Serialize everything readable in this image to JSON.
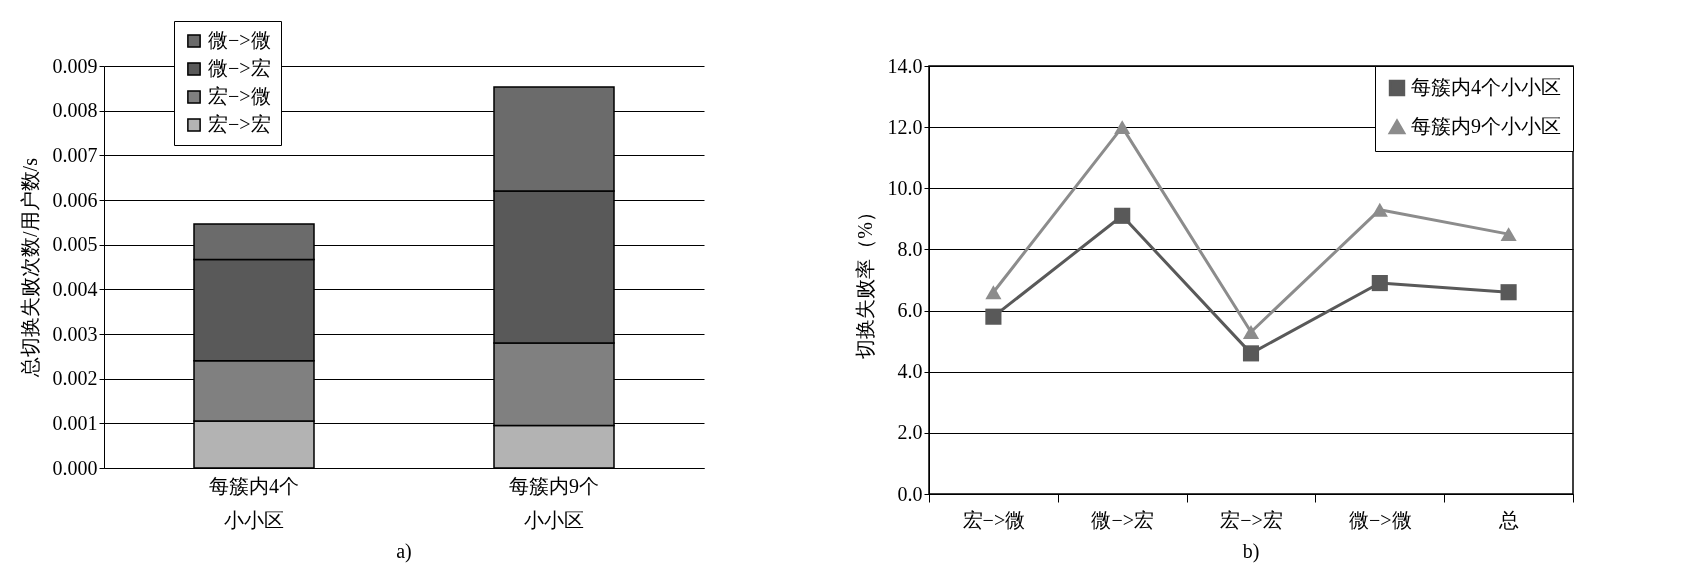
{
  "chart_data": [
    {
      "type": "bar",
      "stacked": true,
      "ylabel": "总切换失败次数/用户数/s",
      "categories": [
        "每簇内4个小小区",
        "每簇内9个小小区"
      ],
      "series": [
        {
          "name": "宏−>宏",
          "color": "#b3b3b3",
          "values": [
            0.00105,
            0.00095
          ]
        },
        {
          "name": "宏−>微",
          "color": "#808080",
          "values": [
            0.00135,
            0.00185
          ]
        },
        {
          "name": "微−>宏",
          "color": "#595959",
          "values": [
            0.00227,
            0.0034
          ]
        },
        {
          "name": "微−>微",
          "color": "#6b6b6b",
          "values": [
            0.00079,
            0.00233
          ]
        }
      ],
      "ylim": [
        0,
        0.009
      ],
      "yticks": [
        {
          "value": 0,
          "label": "0.000"
        },
        {
          "value": 0.001,
          "label": "0.001"
        },
        {
          "value": 0.002,
          "label": "0.002"
        },
        {
          "value": 0.003,
          "label": "0.003"
        },
        {
          "value": 0.004,
          "label": "0.004"
        },
        {
          "value": 0.005,
          "label": "0.005"
        },
        {
          "value": 0.006,
          "label": "0.006"
        },
        {
          "value": 0.007,
          "label": "0.007"
        },
        {
          "value": 0.008,
          "label": "0.008"
        },
        {
          "value": 0.009,
          "label": "0.009"
        }
      ],
      "grid": "y",
      "legend": "top left",
      "annotations": [
        "a)"
      ]
    },
    {
      "type": "line",
      "ylabel": "切换失败率（%）",
      "categories": [
        "宏−>微",
        "微−>宏",
        "宏−>宏",
        "微−>微",
        "总"
      ],
      "series": [
        {
          "name": "每簇内4个小小区",
          "color": "#595959",
          "marker": "square",
          "values": [
            5.8,
            9.1,
            4.6,
            6.9,
            6.6
          ]
        },
        {
          "name": "每簇内9个小小区",
          "color": "#8c8c8c",
          "marker": "triangle",
          "values": [
            6.6,
            12.0,
            5.3,
            9.3,
            8.5
          ]
        }
      ],
      "ylim": [
        0,
        14
      ],
      "yticks": [
        {
          "value": 0,
          "label": "0.0"
        },
        {
          "value": 2,
          "label": "2.0"
        },
        {
          "value": 4,
          "label": "4.0"
        },
        {
          "value": 6,
          "label": "6.0"
        },
        {
          "value": 8,
          "label": "8.0"
        },
        {
          "value": 10,
          "label": "10.0"
        },
        {
          "value": 12,
          "label": "12.0"
        },
        {
          "value": 14,
          "label": "14.0"
        }
      ],
      "grid": "y",
      "legend": "top right",
      "annotations": [
        "b)"
      ]
    }
  ]
}
